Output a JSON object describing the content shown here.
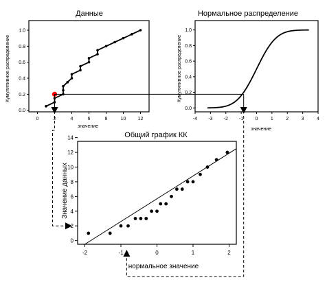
{
  "chart_data": [
    {
      "id": "data",
      "type": "line",
      "title": "Данные",
      "xlabel": "значение",
      "ylabel": "Кумулятивное распределение",
      "xlim": [
        -1,
        13
      ],
      "ylim": [
        -0.02,
        1.12
      ],
      "xticks": [
        "0",
        "2",
        "4",
        "6",
        "8",
        "10",
        "12"
      ],
      "yticks": [
        "0.0",
        "0.2",
        "0.4",
        "0.6",
        "0.8",
        "1.0"
      ],
      "x": [
        1,
        2,
        2,
        3,
        3,
        3,
        3.5,
        4,
        4,
        5,
        5,
        6,
        6,
        7,
        7,
        8,
        9,
        10,
        11,
        12
      ],
      "y": [
        0.05,
        0.1,
        0.15,
        0.2,
        0.25,
        0.3,
        0.35,
        0.4,
        0.45,
        0.5,
        0.55,
        0.6,
        0.65,
        0.7,
        0.75,
        0.8,
        0.85,
        0.9,
        0.95,
        1.0
      ],
      "highlight": {
        "x": 2,
        "y": 0.2,
        "color": "#ff0000"
      }
    },
    {
      "id": "normal",
      "type": "line",
      "title": "Нормальное распределение",
      "xlabel": "значение",
      "ylabel": "Кумулятивное распределение",
      "xlim": [
        -4,
        4
      ],
      "ylim": [
        -0.05,
        1.12
      ],
      "xticks": [
        "-4",
        "-3",
        "-2",
        "-1",
        "0",
        "1",
        "2",
        "3",
        "4"
      ],
      "yticks": [
        "0.0",
        "0.2",
        "0.4",
        "0.6",
        "0.8",
        "1.0"
      ],
      "curve": "normal-cdf",
      "x_range": [
        -3.2,
        3.4
      ],
      "marker_x": -0.84
    },
    {
      "id": "qq",
      "type": "scatter",
      "title": "Общий график КК",
      "xlabel": "нормальное значение",
      "ylabel": "Значение данных",
      "xlim": [
        -2.2,
        2.2
      ],
      "ylim": [
        -0.5,
        13.5
      ],
      "xticks": [
        "-2",
        "-1",
        "0",
        "1",
        "2"
      ],
      "yticks": [
        "0",
        "2",
        "4",
        "6",
        "8",
        "10",
        "12",
        "14"
      ],
      "x": [
        -1.9,
        -1.3,
        -1.0,
        -0.8,
        -0.6,
        -0.45,
        -0.3,
        -0.15,
        0.0,
        0.1,
        0.25,
        0.4,
        0.55,
        0.7,
        0.85,
        1.0,
        1.2,
        1.4,
        1.65,
        1.95
      ],
      "y": [
        1,
        1,
        2,
        2,
        3,
        3,
        3,
        4,
        4,
        5,
        5,
        6,
        7,
        7,
        8,
        8,
        9,
        10,
        11,
        12
      ],
      "fit_line": {
        "x": [
          -2.0,
          2.2
        ],
        "y": [
          -0.5,
          12.5
        ]
      },
      "marker_x": -0.84,
      "marker_y": 2
    }
  ]
}
